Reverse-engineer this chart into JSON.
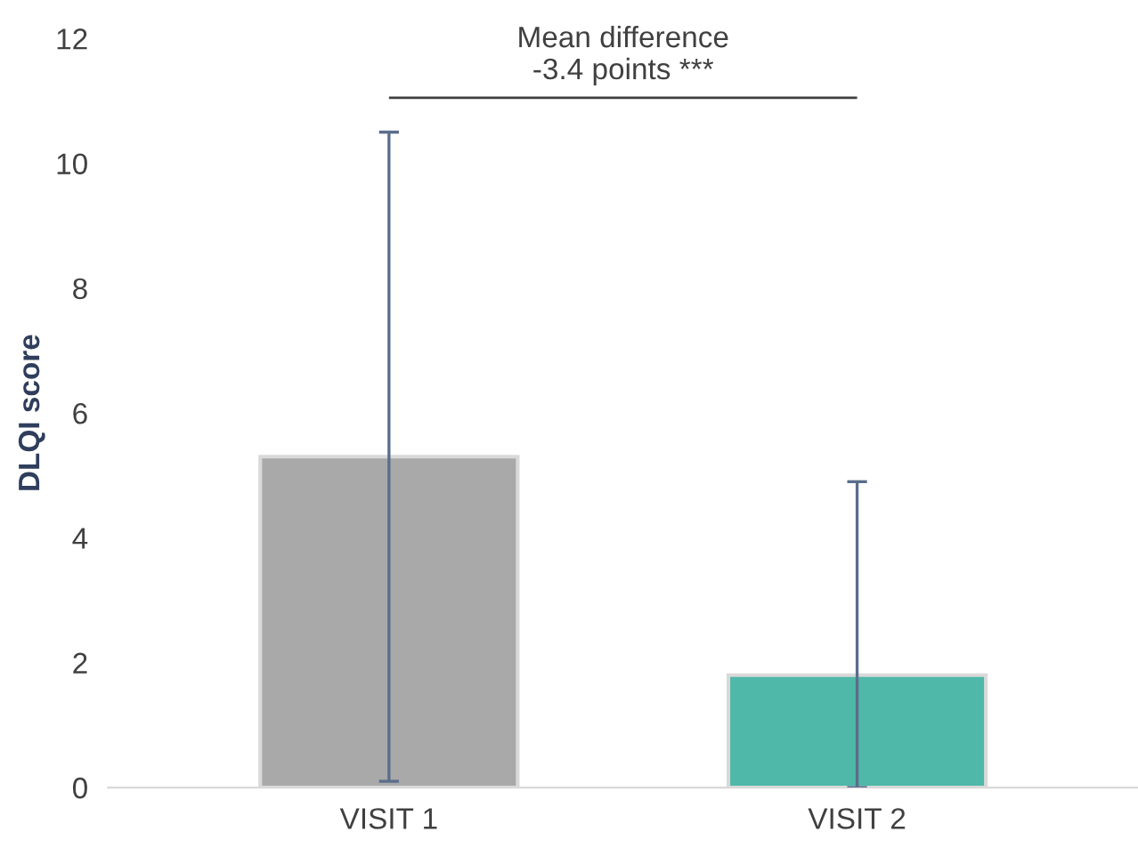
{
  "chart_data": {
    "type": "bar",
    "ylabel": "DLQI score",
    "categories": [
      "VISIT 1",
      "VISIT 2"
    ],
    "values": [
      5.3,
      1.8
    ],
    "errors": [
      [
        0.1,
        10.5
      ],
      [
        0,
        4.9
      ]
    ],
    "colors": [
      "#a9a9a9",
      "#4fb8a8"
    ],
    "ylim": [
      0,
      12
    ],
    "yticks": [
      0,
      2,
      4,
      6,
      8,
      10,
      12
    ],
    "grid": false,
    "legend": false,
    "annotations": [
      "Mean difference\n-3.4 points ***"
    ]
  }
}
